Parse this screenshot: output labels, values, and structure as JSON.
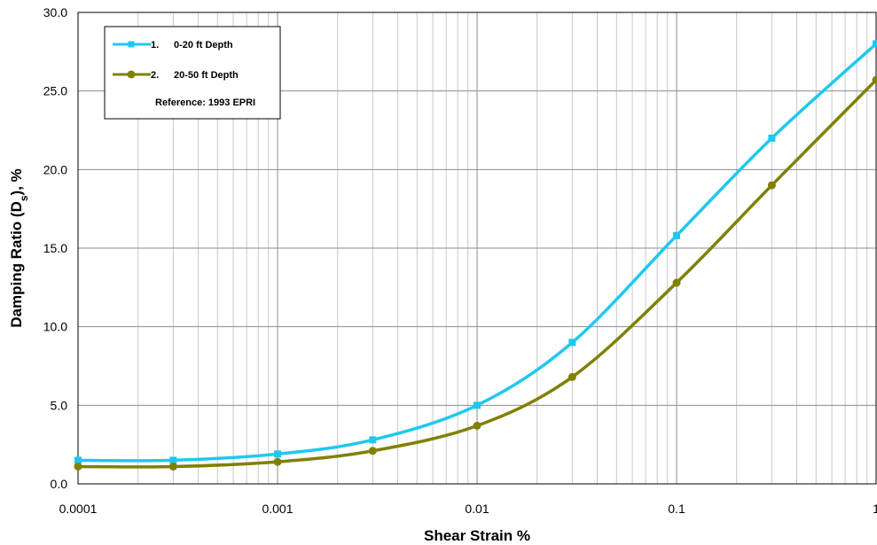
{
  "chart_data": {
    "type": "line",
    "xlabel": "Shear Strain %",
    "ylabel": {
      "prefix": "Damping Ratio (D",
      "subscript": "s",
      "suffix": "), %"
    },
    "xscale": "log",
    "xlim": [
      0.0001,
      1
    ],
    "ylim": [
      0,
      30
    ],
    "grid": true,
    "legend_position": "top-left",
    "x_tick_labels": [
      "0.0001",
      "0.001",
      "0.01",
      "0.1",
      "1"
    ],
    "y_tick_labels": [
      "0.0",
      "5.0",
      "10.0",
      "15.0",
      "20.0",
      "25.0",
      "30.0"
    ],
    "series": [
      {
        "name": "0-20 ft Depth",
        "number": "1.",
        "color": "#1ec8f0",
        "marker": "square",
        "x": [
          0.0001,
          0.0003,
          0.001,
          0.003,
          0.01,
          0.03,
          0.1,
          0.3,
          1
        ],
        "values": [
          1.5,
          1.5,
          1.9,
          2.8,
          5.0,
          9.0,
          15.8,
          22.0,
          28.0
        ]
      },
      {
        "name": "20-50 ft Depth",
        "number": "2.",
        "color": "#808000",
        "marker": "circle",
        "x": [
          0.0001,
          0.0003,
          0.001,
          0.003,
          0.01,
          0.03,
          0.1,
          0.3,
          1
        ],
        "values": [
          1.1,
          1.1,
          1.4,
          2.1,
          3.7,
          6.8,
          12.8,
          19.0,
          25.7
        ]
      }
    ],
    "legend_note": "Reference: 1993 EPRI"
  }
}
